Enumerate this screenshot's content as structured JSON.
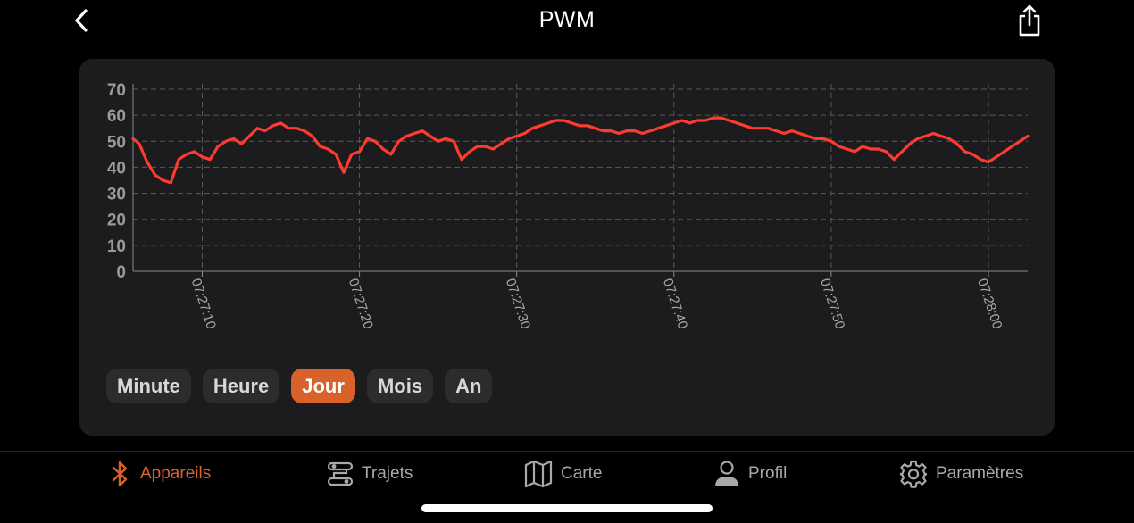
{
  "header": {
    "title": "PWM",
    "back_icon": "chevron-left-icon",
    "share_icon": "share-icon"
  },
  "chart_data": {
    "type": "line",
    "title": "",
    "xlabel": "",
    "ylabel": "",
    "ylim": [
      0,
      70
    ],
    "yticks": [
      "0",
      "10",
      "20",
      "30",
      "40",
      "50",
      "60",
      "70"
    ],
    "xticks": [
      "07:27:10",
      "07:27:20",
      "07:27:30",
      "07:27:40",
      "07:27:50",
      "07:28:00"
    ],
    "grid": true,
    "line_color": "#ff3b30",
    "series": [
      {
        "x": [
          5.6,
          6,
          6.5,
          7,
          7.5,
          8,
          8.5,
          9,
          9.5,
          10,
          10.5,
          11,
          11.5,
          12,
          12.5,
          13,
          13.5,
          14,
          14.5,
          15,
          15.5,
          16,
          16.5,
          17,
          17.5,
          18,
          18.5,
          19,
          19.5,
          20,
          20.5,
          21,
          21.5,
          22,
          22.5,
          23,
          23.5,
          24,
          24.5,
          25,
          25.5,
          26,
          26.5,
          27,
          27.5,
          28,
          28.5,
          29,
          29.5,
          30,
          30.5,
          31,
          31.5,
          32,
          32.5,
          33,
          33.5,
          34,
          34.5,
          35,
          35.5,
          36,
          36.5,
          37,
          37.5,
          38,
          38.5,
          39,
          39.5,
          40,
          40.5,
          41,
          41.5,
          42,
          42.5,
          43,
          43.5,
          44,
          44.5,
          45,
          45.5,
          46,
          46.5,
          47,
          47.5,
          48,
          48.5,
          49,
          49.5,
          50,
          50.5,
          51,
          51.5,
          52,
          52.5,
          53,
          53.5,
          54,
          54.5,
          55,
          55.5,
          56,
          56.5,
          57,
          57.5,
          58,
          58.5,
          59,
          59.5,
          60,
          60.5,
          61,
          61.5,
          62,
          62.5
        ],
        "y": [
          51,
          49,
          42,
          37,
          35,
          34,
          43,
          45,
          46,
          44,
          43,
          48,
          50,
          51,
          49,
          52,
          55,
          54,
          56,
          57,
          55,
          55,
          54,
          52,
          48,
          47,
          45,
          38,
          45,
          46,
          51,
          50,
          47,
          45,
          50,
          52,
          53,
          54,
          52,
          50,
          51,
          50,
          43,
          46,
          48,
          48,
          47,
          49,
          51,
          52,
          53,
          55,
          56,
          57,
          58,
          58,
          57,
          56,
          56,
          55,
          54,
          54,
          53,
          54,
          54,
          53,
          54,
          55,
          56,
          57,
          58,
          57,
          58,
          58,
          59,
          59,
          58,
          57,
          56,
          55,
          55,
          55,
          54,
          53,
          54,
          53,
          52,
          51,
          51,
          50,
          48,
          47,
          46,
          48,
          47,
          47,
          46,
          43,
          46,
          49,
          51,
          52,
          53,
          52,
          51,
          49,
          46,
          45,
          43,
          42,
          44,
          46,
          48,
          50,
          52
        ]
      }
    ]
  },
  "periods": {
    "minute": "Minute",
    "heure": "Heure",
    "jour": "Jour",
    "mois": "Mois",
    "an": "An",
    "active": "Jour",
    "active_color": "#d9622b"
  },
  "tabbar": {
    "appareils": {
      "label": "Appareils",
      "icon": "bluetooth-icon"
    },
    "trajets": {
      "label": "Trajets",
      "icon": "route-icon"
    },
    "carte": {
      "label": "Carte",
      "icon": "map-icon"
    },
    "profil": {
      "label": "Profil",
      "icon": "person-icon"
    },
    "parametres": {
      "label": "Paramètres",
      "icon": "gear-icon"
    },
    "active": "Appareils",
    "accent": "#d9622b"
  }
}
